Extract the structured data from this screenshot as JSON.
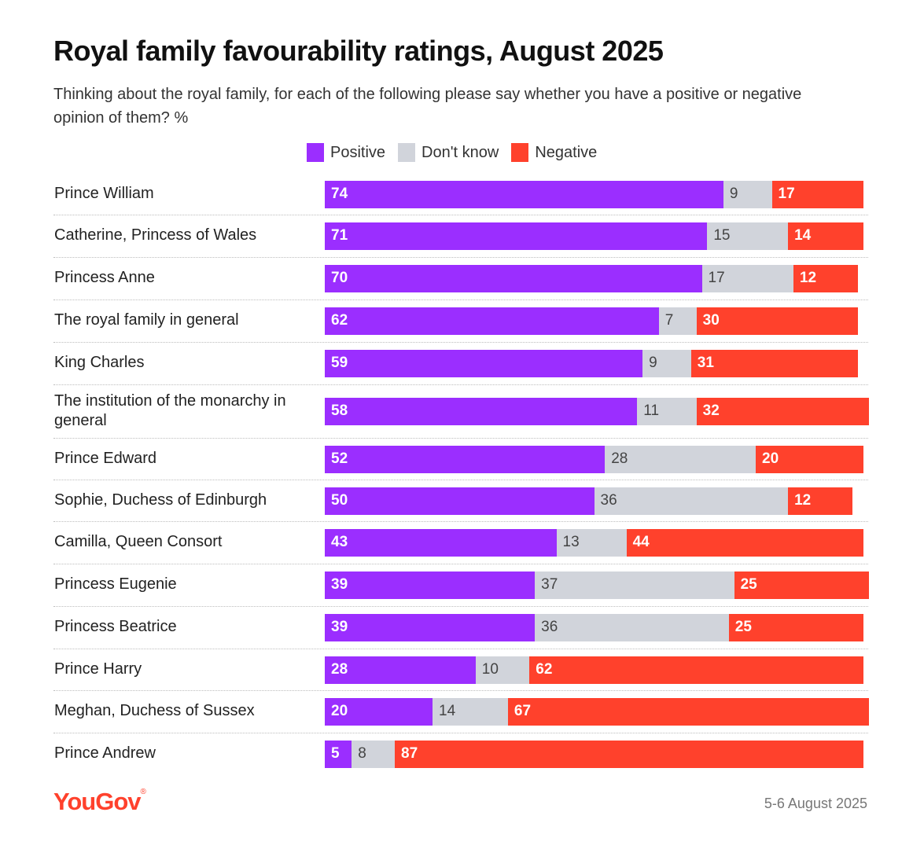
{
  "colors": {
    "positive": "#9b2eff",
    "dontknow": "#d1d4db",
    "negative": "#ff412c",
    "logo": "#ff412c"
  },
  "chart_data": {
    "type": "bar",
    "orientation": "horizontal",
    "stacked": true,
    "title": "Royal family favourability ratings, August 2025",
    "subtitle": "Thinking about the royal family, for each of the following please say whether you have a positive or negative opinion of them? %",
    "legend": [
      "Positive",
      "Don't know",
      "Negative"
    ],
    "legend_position": "top",
    "categories": [
      [
        "Prince William"
      ],
      [
        "Catherine, Princess of Wales"
      ],
      [
        "Princess Anne"
      ],
      [
        "The royal family in general"
      ],
      [
        "King Charles"
      ],
      [
        "The institution of the monarchy in",
        "general"
      ],
      [
        "Prince Edward"
      ],
      [
        "Sophie, Duchess of Edinburgh"
      ],
      [
        "Camilla, Queen Consort"
      ],
      [
        "Princess Eugenie"
      ],
      [
        "Princess Beatrice"
      ],
      [
        "Prince Harry"
      ],
      [
        "Meghan, Duchess of Sussex"
      ],
      [
        "Prince Andrew"
      ]
    ],
    "series": [
      {
        "name": "Positive",
        "values": [
          74,
          71,
          70,
          62,
          59,
          58,
          52,
          50,
          43,
          39,
          39,
          28,
          20,
          5
        ]
      },
      {
        "name": "Don't know",
        "values": [
          9,
          15,
          17,
          7,
          9,
          11,
          28,
          36,
          13,
          37,
          36,
          10,
          14,
          8
        ]
      },
      {
        "name": "Negative",
        "values": [
          17,
          14,
          12,
          30,
          31,
          32,
          20,
          12,
          44,
          25,
          25,
          62,
          67,
          87
        ]
      }
    ],
    "xlim": [
      0,
      100
    ]
  },
  "footer": {
    "logo": "YouGov",
    "date": "5-6 August 2025"
  }
}
